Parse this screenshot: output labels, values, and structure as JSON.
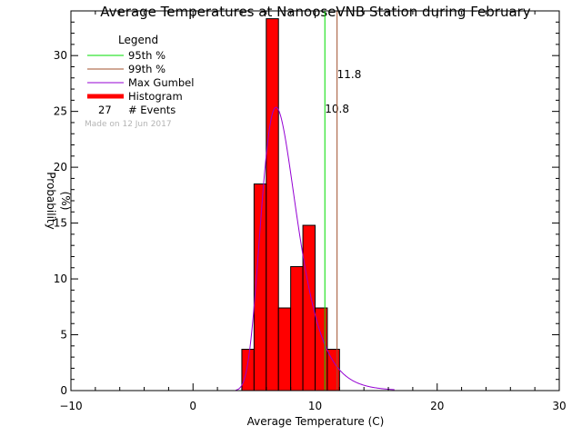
{
  "chart_data": {
    "type": "bar",
    "title": "Average Temperatures at NanooseVNB Station during February",
    "xlabel": "Average Temperature (C)",
    "ylabel_line1": "Probability",
    "ylabel_line2": "(%)",
    "xlim": [
      -10,
      30
    ],
    "ylim": [
      0,
      34
    ],
    "xticks": [
      -10,
      0,
      10,
      20,
      30
    ],
    "xtick_labels": [
      "−10",
      "0",
      "10",
      "20",
      "30"
    ],
    "yticks": [
      0,
      5,
      10,
      15,
      20,
      25,
      30
    ],
    "yminor_step": 1,
    "xminor_step": 2,
    "histogram": {
      "bin_width": 1,
      "bins": [
        {
          "x0": 4,
          "x1": 5,
          "value": 3.7
        },
        {
          "x0": 5,
          "x1": 6,
          "value": 18.5
        },
        {
          "x0": 6,
          "x1": 7,
          "value": 33.3
        },
        {
          "x0": 7,
          "x1": 8,
          "value": 7.4
        },
        {
          "x0": 8,
          "x1": 9,
          "value": 11.1
        },
        {
          "x0": 9,
          "x1": 10,
          "value": 14.8
        },
        {
          "x0": 10,
          "x1": 11,
          "value": 7.4
        },
        {
          "x0": 11,
          "x1": 12,
          "value": 3.7
        }
      ],
      "color": "#ff0000"
    },
    "gumbel": {
      "mode": 6.8,
      "scale": 1.45,
      "area": 100,
      "x_range": [
        3.5,
        16.5
      ],
      "color": "#9400d3"
    },
    "p95": {
      "value": 10.8,
      "label": "10.8",
      "color": "#00dd00"
    },
    "p99": {
      "value": 11.8,
      "label": "11.8",
      "color": "#a0522d"
    },
    "legend": {
      "title": "Legend",
      "entries": [
        {
          "label": "95th %",
          "color": "#00dd00"
        },
        {
          "label": "99th %",
          "color": "#a0522d"
        },
        {
          "label": "Max Gumbel",
          "color": "#9400d3"
        },
        {
          "label": "Histogram",
          "color": "#ff0000"
        }
      ],
      "events_count": "27",
      "events_label": "# Events",
      "made_on": "Made on 12 Jun 2017"
    }
  }
}
